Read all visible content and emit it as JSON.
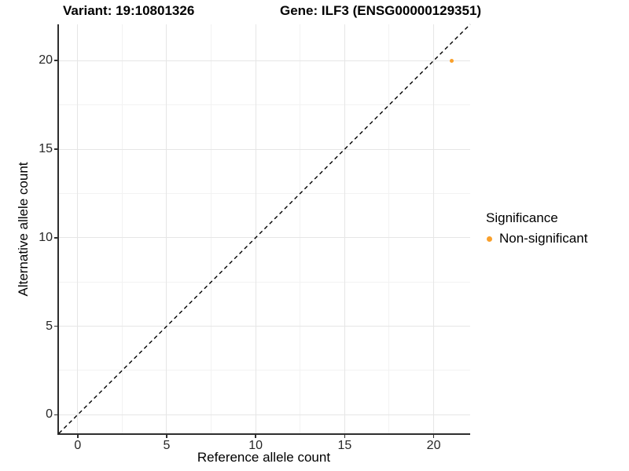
{
  "colors": {
    "point_orange": "#F9A02B",
    "grid_major": "#E6E6E6",
    "grid_minor": "#F2F2F2",
    "axis_line": "#2E2E2E",
    "tick_text": "#262626",
    "dashed_line": "#000000",
    "background": "#FFFFFF"
  },
  "chart_data": {
    "type": "scatter",
    "title_parts": [
      "Variant: 19:10801326",
      "Gene: ILF3 (ENSG00000129351)"
    ],
    "xlabel": "Reference allele count",
    "ylabel": "Alternative allele count",
    "xlim": [
      -1.05,
      22.05
    ],
    "ylim": [
      -1.05,
      22.05
    ],
    "x_ticks": [
      0,
      5,
      10,
      15,
      20
    ],
    "y_ticks": [
      0,
      5,
      10,
      15,
      20
    ],
    "x_minor_ticks": [
      2.5,
      7.5,
      12.5,
      17.5
    ],
    "y_minor_ticks": [
      2.5,
      7.5,
      12.5,
      17.5
    ],
    "grid": true,
    "points": [
      {
        "x": 21,
        "y": 20,
        "series": "Non-significant"
      }
    ],
    "reference_line": {
      "style": "dashed",
      "slope": 1,
      "from": [
        -1.05,
        -1.05
      ],
      "to": [
        22.05,
        22.05
      ]
    },
    "legend": {
      "title": "Significance",
      "position": "right",
      "entries": [
        {
          "label": "Non-significant",
          "color": "#F9A02B"
        }
      ]
    }
  }
}
